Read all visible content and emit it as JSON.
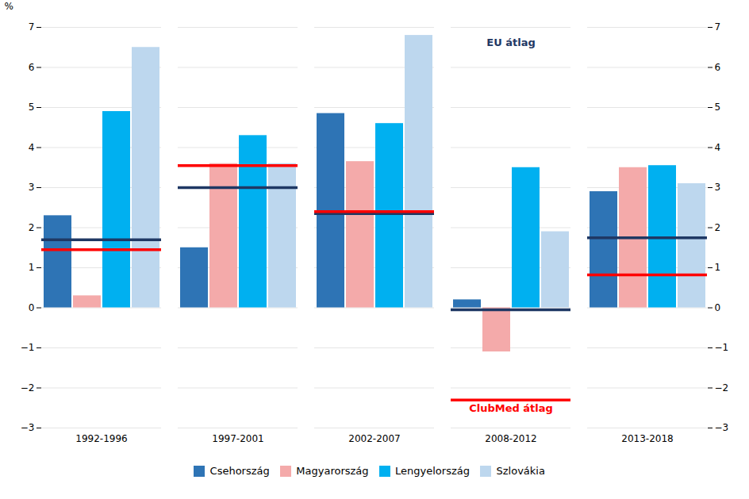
{
  "chart_data": {
    "type": "bar",
    "categories": [
      "1992-1996",
      "1997-2001",
      "2002-2007",
      "2008-2012",
      "2013-2018"
    ],
    "series": [
      {
        "name": "Csehország",
        "color": "#2E74B5",
        "values": [
          2.3,
          1.5,
          4.85,
          0.2,
          2.9
        ]
      },
      {
        "name": "Magyarország",
        "color": "#F4AAAA",
        "values": [
          0.3,
          3.6,
          3.65,
          -1.1,
          3.5
        ]
      },
      {
        "name": "Lengyelország",
        "color": "#00B0F0",
        "values": [
          4.9,
          4.3,
          4.6,
          3.5,
          3.55
        ]
      },
      {
        "name": "Szlovákia",
        "color": "#BDD7EE",
        "values": [
          6.5,
          3.6,
          6.8,
          1.9,
          3.1
        ]
      },
      {
        "name": "EU átlag",
        "type": "hline",
        "color": "#1F3864",
        "values": [
          1.7,
          3.0,
          2.35,
          -0.05,
          1.75
        ]
      },
      {
        "name": "ClubMed átlag",
        "type": "hline",
        "color": "#FF0000",
        "values": [
          1.45,
          3.55,
          2.4,
          -2.3,
          0.82
        ]
      }
    ],
    "ylabel": "%",
    "ylim": [
      -3,
      7
    ],
    "yticks": [
      -3,
      -2,
      -1,
      0,
      1,
      2,
      3,
      4,
      5,
      6,
      7
    ],
    "grid": true,
    "legend": "bottom"
  }
}
